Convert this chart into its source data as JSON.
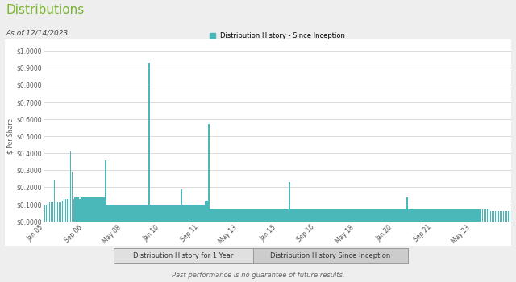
{
  "title": "Distributions",
  "subtitle": "As of 12/14/2023",
  "legend_label": "Distribution History - Since Inception",
  "ylabel": "$ Per Share",
  "bar_color": "#4ab8b8",
  "background_color": "#eeeeee",
  "chart_bg": "#ffffff",
  "outer_bg": "#eeeeee",
  "ylim": [
    0,
    1.0
  ],
  "yticks": [
    0.0,
    0.1,
    0.2,
    0.3,
    0.4,
    0.5,
    0.6,
    0.7,
    0.8,
    0.9,
    1.0
  ],
  "ytick_labels": [
    "$0.0000",
    "$0.1000",
    "$0.2000",
    "$0.3000",
    "$0.4000",
    "$0.5000",
    "$0.6000",
    "$0.7000",
    "$0.8000",
    "$0.9000",
    "$1.0000"
  ],
  "xtick_labels": [
    "Jan 05",
    "Sep 06",
    "May 08",
    "Jan 10",
    "Sep 11",
    "May 13",
    "Jan 15",
    "Sep 16",
    "May 18",
    "Jan 20",
    "Sep 21",
    "May 23"
  ],
  "button1": "Distribution History for 1 Year",
  "button2": "Distribution History Since Inception",
  "footnote": "Past performance is no guarantee of future results.",
  "title_color": "#7ab330",
  "subtitle_color": "#444444",
  "footnote_color": "#666666",
  "distributions": [
    0.1,
    0.1,
    0.1,
    0.11,
    0.11,
    0.11,
    0.24,
    0.11,
    0.11,
    0.11,
    0.11,
    0.12,
    0.13,
    0.13,
    0.13,
    0.13,
    0.41,
    0.29,
    0.13,
    0.14,
    0.14,
    0.14,
    0.13,
    0.14,
    0.14,
    0.14,
    0.14,
    0.14,
    0.14,
    0.14,
    0.14,
    0.14,
    0.14,
    0.14,
    0.14,
    0.14,
    0.14,
    0.14,
    0.36,
    0.1,
    0.1,
    0.1,
    0.1,
    0.1,
    0.1,
    0.1,
    0.1,
    0.1,
    0.1,
    0.1,
    0.1,
    0.1,
    0.1,
    0.1,
    0.1,
    0.1,
    0.1,
    0.1,
    0.1,
    0.1,
    0.1,
    0.1,
    0.1,
    0.1,
    0.1,
    0.93,
    0.1,
    0.1,
    0.1,
    0.1,
    0.1,
    0.1,
    0.1,
    0.1,
    0.1,
    0.1,
    0.1,
    0.1,
    0.1,
    0.1,
    0.1,
    0.1,
    0.1,
    0.1,
    0.1,
    0.19,
    0.1,
    0.1,
    0.1,
    0.1,
    0.1,
    0.1,
    0.1,
    0.1,
    0.1,
    0.1,
    0.1,
    0.1,
    0.1,
    0.1,
    0.12,
    0.12,
    0.57,
    0.07,
    0.07,
    0.07,
    0.07,
    0.07,
    0.07,
    0.07,
    0.07,
    0.07,
    0.07,
    0.07,
    0.07,
    0.07,
    0.07,
    0.07,
    0.07,
    0.07,
    0.07,
    0.07,
    0.07,
    0.07,
    0.07,
    0.07,
    0.07,
    0.07,
    0.07,
    0.07,
    0.07,
    0.07,
    0.07,
    0.07,
    0.07,
    0.07,
    0.07,
    0.07,
    0.07,
    0.07,
    0.07,
    0.07,
    0.07,
    0.07,
    0.07,
    0.07,
    0.07,
    0.07,
    0.07,
    0.07,
    0.07,
    0.07,
    0.23,
    0.07,
    0.07,
    0.07,
    0.07,
    0.07,
    0.07,
    0.07,
    0.07,
    0.07,
    0.07,
    0.07,
    0.07,
    0.07,
    0.07,
    0.07,
    0.07,
    0.07,
    0.07,
    0.07,
    0.07,
    0.07,
    0.07,
    0.07,
    0.07,
    0.07,
    0.07,
    0.07,
    0.07,
    0.07,
    0.07,
    0.07,
    0.07,
    0.07,
    0.07,
    0.07,
    0.07,
    0.07,
    0.07,
    0.07,
    0.07,
    0.07,
    0.07,
    0.07,
    0.07,
    0.07,
    0.07,
    0.07,
    0.07,
    0.07,
    0.07,
    0.07,
    0.07,
    0.07,
    0.07,
    0.07,
    0.07,
    0.07,
    0.07,
    0.07,
    0.07,
    0.07,
    0.07,
    0.07,
    0.07,
    0.07,
    0.07,
    0.07,
    0.07,
    0.07,
    0.07,
    0.07,
    0.07,
    0.14,
    0.07,
    0.07,
    0.07,
    0.07,
    0.07,
    0.07,
    0.07,
    0.07,
    0.07,
    0.07,
    0.07,
    0.07,
    0.07,
    0.07,
    0.07,
    0.07,
    0.07,
    0.07,
    0.07,
    0.07,
    0.07,
    0.07,
    0.07,
    0.07,
    0.07,
    0.07,
    0.07,
    0.07,
    0.07,
    0.07,
    0.07,
    0.07,
    0.07,
    0.07,
    0.07,
    0.07,
    0.07,
    0.07,
    0.07,
    0.07,
    0.07,
    0.07,
    0.07,
    0.07,
    0.07,
    0.07,
    0.07,
    0.07,
    0.07,
    0.07,
    0.07,
    0.06,
    0.06,
    0.06,
    0.06,
    0.06,
    0.06,
    0.06,
    0.06,
    0.06,
    0.06,
    0.06,
    0.06,
    0.06
  ],
  "xtick_positions_frac": [
    0.0,
    0.083,
    0.167,
    0.25,
    0.333,
    0.417,
    0.5,
    0.583,
    0.667,
    0.75,
    0.833,
    0.917
  ]
}
